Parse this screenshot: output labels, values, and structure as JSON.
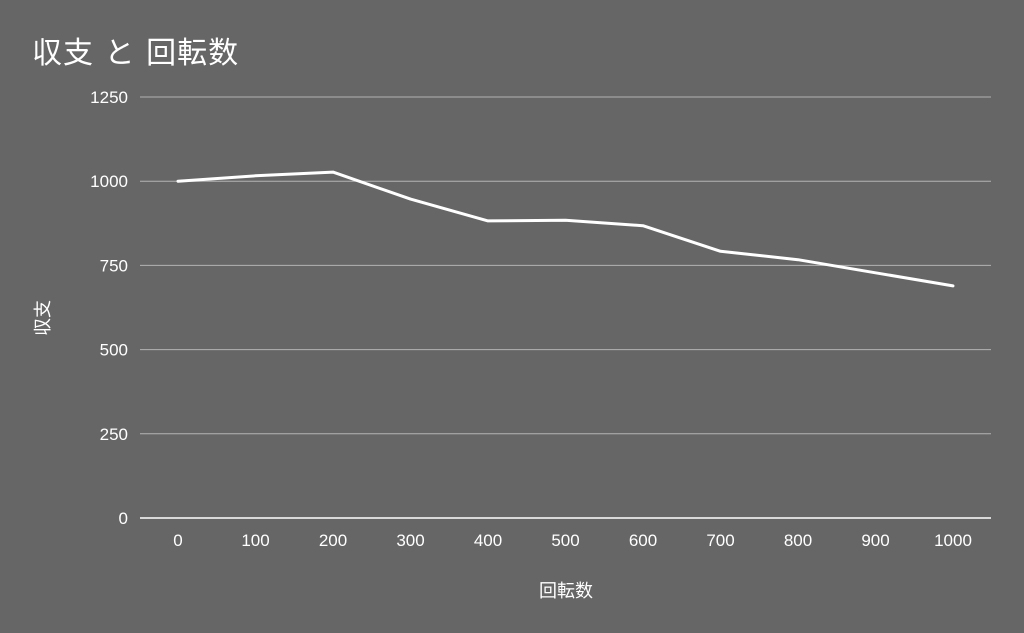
{
  "chart_data": {
    "type": "line",
    "title": "収支 と 回転数",
    "xlabel": "回転数",
    "ylabel": "収支",
    "x": [
      0,
      100,
      200,
      300,
      400,
      500,
      600,
      700,
      800,
      900,
      1000
    ],
    "series": [
      {
        "values": [
          1000,
          1016,
          1027,
          947,
          882,
          884,
          868,
          792,
          767,
          728,
          689
        ]
      }
    ],
    "x_ticks": [
      "0",
      "100",
      "200",
      "300",
      "400",
      "500",
      "600",
      "700",
      "800",
      "900",
      "1000"
    ],
    "y_ticks": [
      "0",
      "250",
      "500",
      "750",
      "1000",
      "1250"
    ],
    "ylim": [
      0,
      1250
    ],
    "grid": true,
    "legend": "none"
  },
  "colors": {
    "background": "#666666",
    "line": "#ffffff",
    "gridline": "#b3b3b3",
    "baseline": "#ffffff",
    "text": "#ffffff"
  }
}
